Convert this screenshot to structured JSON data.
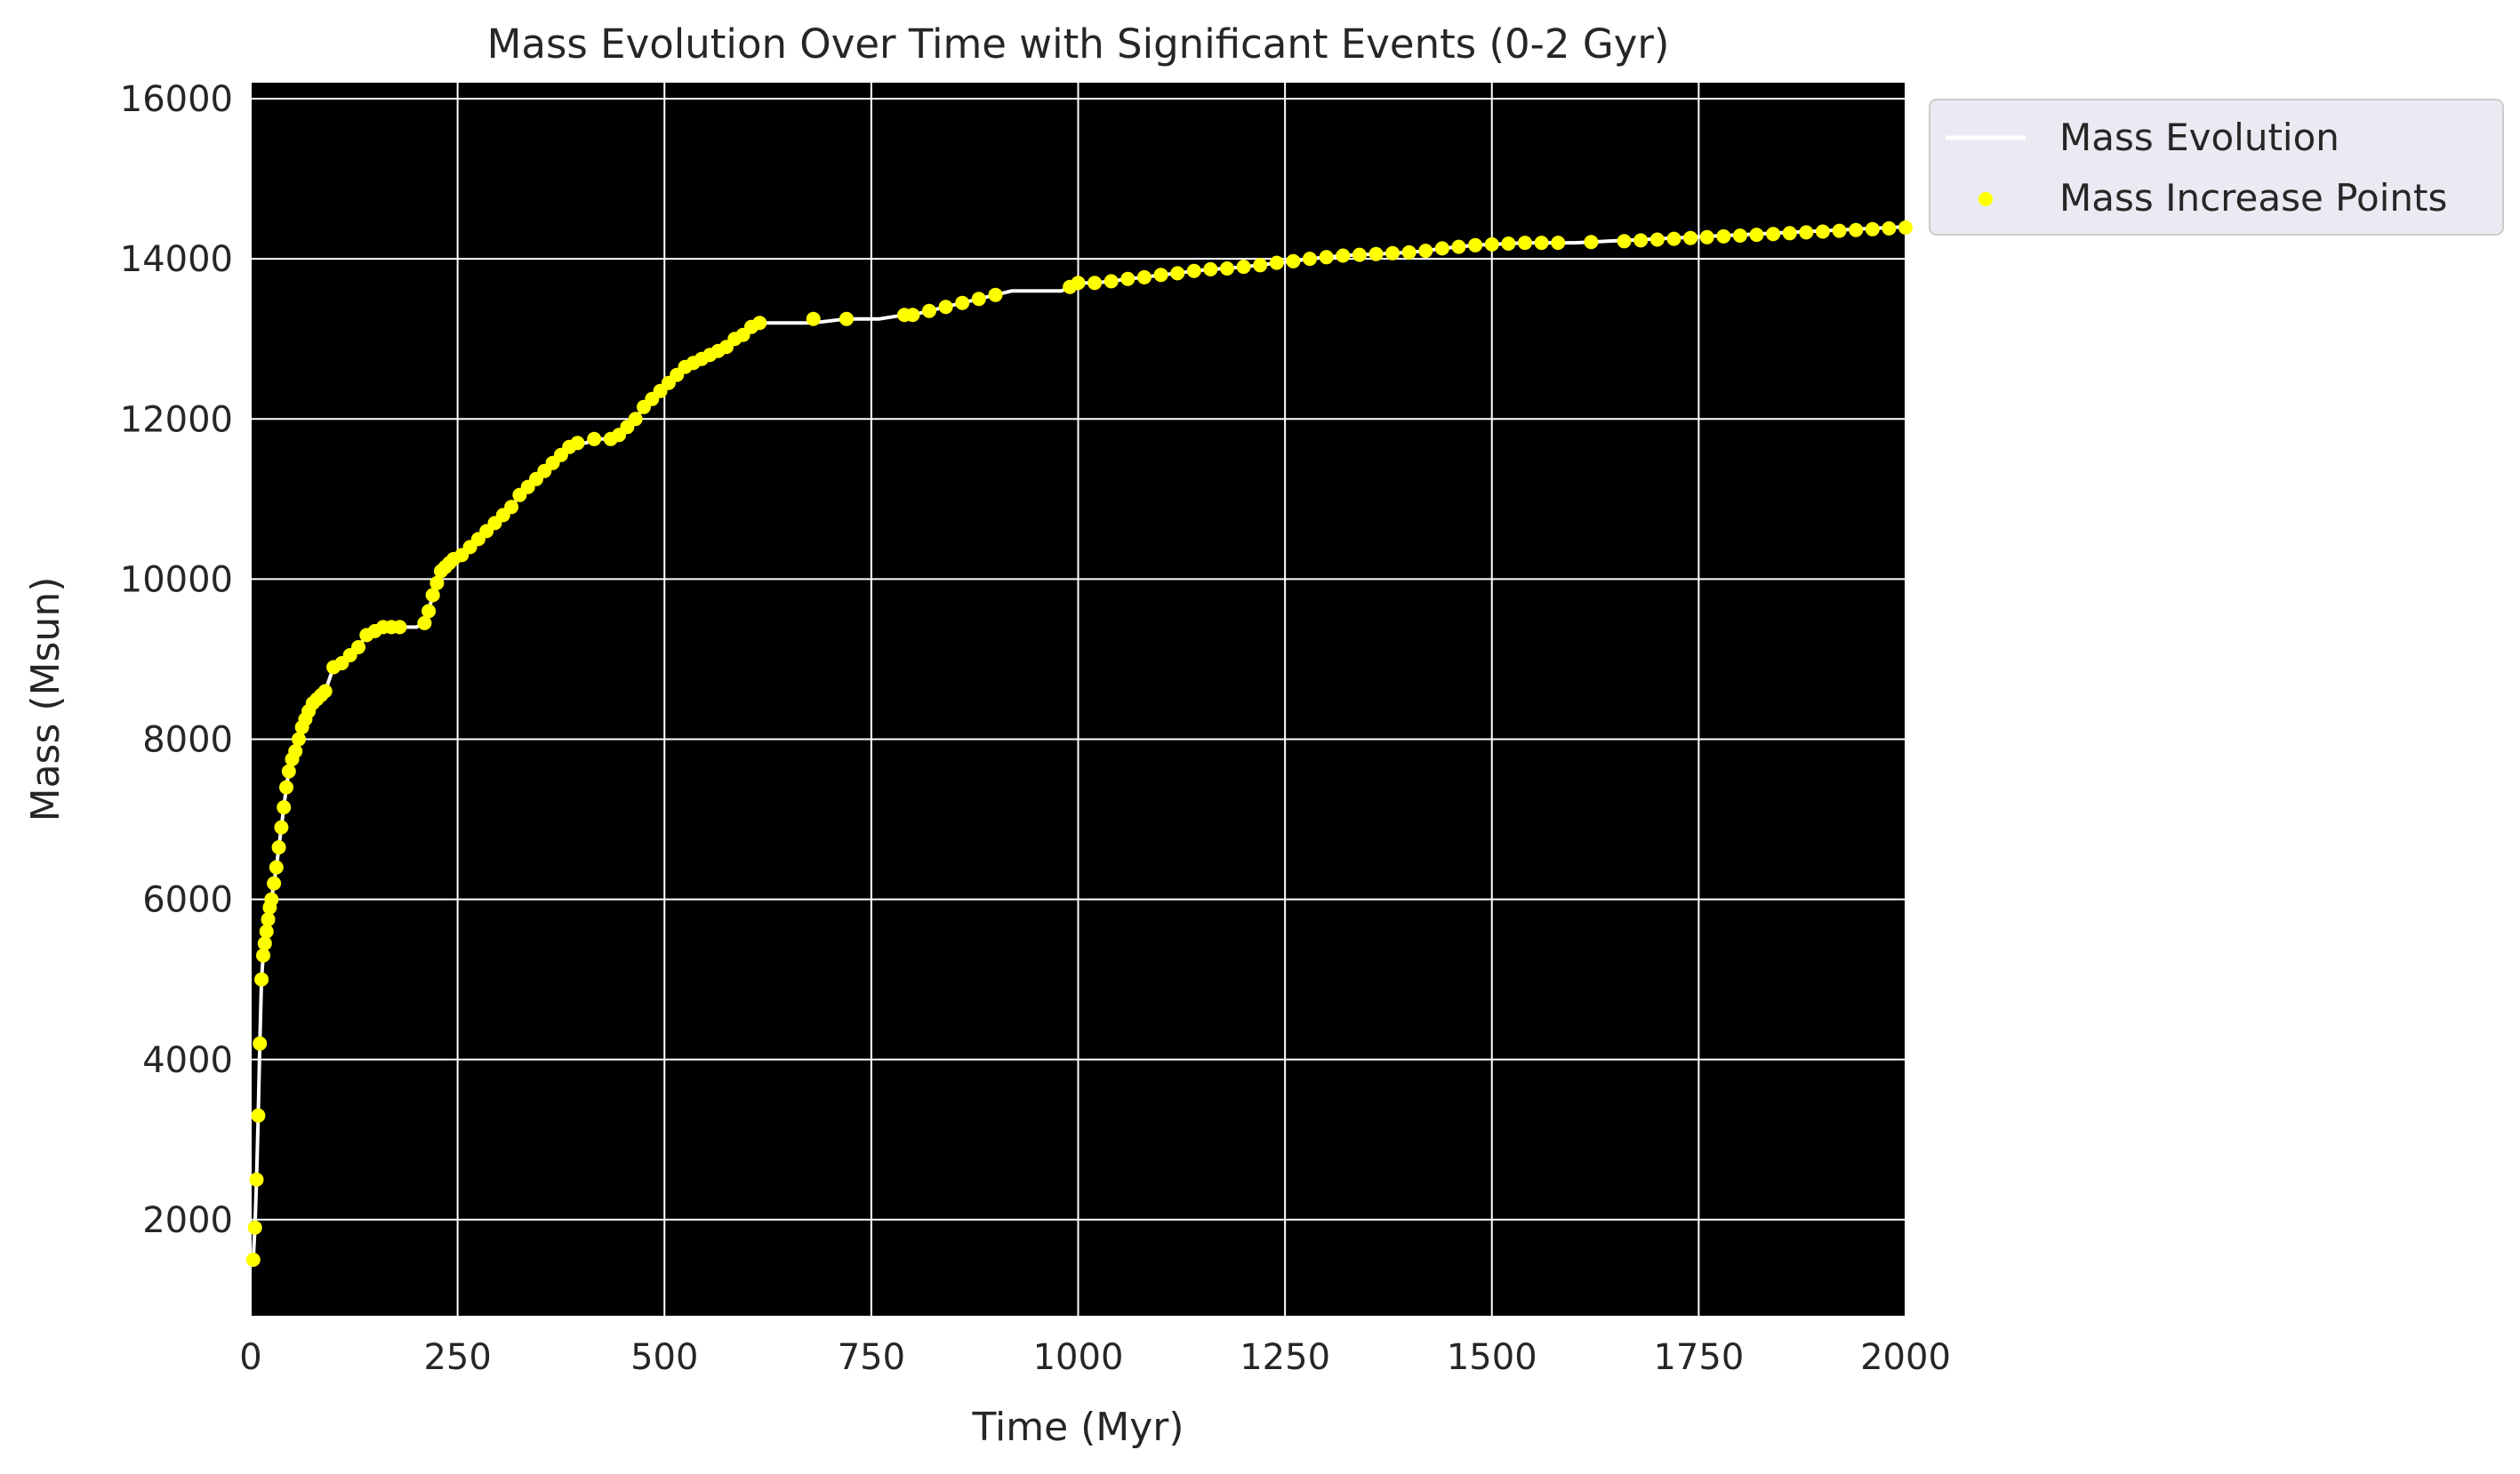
{
  "chart_data": {
    "type": "line",
    "title": "Mass Evolution Over Time with Significant Events (0-2 Gyr)",
    "xlabel": "Time (Myr)",
    "ylabel": "Mass (Msun)",
    "xlim": [
      0,
      2000
    ],
    "ylim": [
      800,
      16200
    ],
    "x_ticks": [
      0,
      250,
      500,
      750,
      1000,
      1250,
      1500,
      1750,
      2000
    ],
    "x_tick_labels": [
      "0",
      "250",
      "500",
      "750",
      "1000",
      "1250",
      "1500",
      "1750",
      "2000"
    ],
    "y_ticks": [
      2000,
      4000,
      6000,
      8000,
      10000,
      12000,
      14000,
      16000
    ],
    "y_tick_labels": [
      "2000",
      "4000",
      "6000",
      "8000",
      "10000",
      "12000",
      "14000",
      "16000"
    ],
    "grid": true,
    "legend_position": "outside upper-right",
    "series": [
      {
        "name": "Mass Evolution",
        "kind": "line",
        "color": "#ffffff",
        "x": [
          3,
          5,
          7,
          9,
          11,
          13,
          15,
          17,
          19,
          21,
          23,
          25,
          28,
          31,
          34,
          37,
          40,
          43,
          46,
          50,
          54,
          58,
          62,
          66,
          70,
          75,
          80,
          85,
          90,
          100,
          110,
          120,
          130,
          140,
          150,
          160,
          170,
          180,
          190,
          200,
          210,
          215,
          220,
          225,
          230,
          235,
          240,
          245,
          255,
          265,
          275,
          285,
          295,
          305,
          315,
          325,
          335,
          345,
          355,
          365,
          375,
          385,
          395,
          405,
          415,
          425,
          435,
          445,
          455,
          465,
          475,
          485,
          495,
          505,
          515,
          525,
          535,
          545,
          555,
          565,
          575,
          585,
          595,
          605,
          615,
          640,
          680,
          720,
          760,
          790,
          800,
          820,
          840,
          860,
          880,
          900,
          920,
          940,
          960,
          980,
          990,
          1000,
          1020,
          1040,
          1060,
          1080,
          1100,
          1120,
          1140,
          1160,
          1180,
          1200,
          1220,
          1240,
          1260,
          1280,
          1300,
          1320,
          1340,
          1360,
          1380,
          1400,
          1420,
          1440,
          1460,
          1480,
          1500,
          1520,
          1540,
          1560,
          1580,
          1600,
          1620,
          1640,
          1660,
          1680,
          1700,
          1720,
          1740,
          1760,
          1780,
          1800,
          1820,
          1840,
          1860,
          1880,
          1900,
          1920,
          1940,
          1960,
          1980,
          2000
        ],
        "y": [
          1500,
          1900,
          2500,
          3300,
          4200,
          5000,
          5300,
          5450,
          5600,
          5750,
          5900,
          6000,
          6200,
          6400,
          6650,
          6900,
          7150,
          7400,
          7600,
          7750,
          7850,
          8000,
          8150,
          8250,
          8350,
          8450,
          8500,
          8550,
          8600,
          8900,
          8950,
          9050,
          9150,
          9300,
          9350,
          9400,
          9400,
          9400,
          9400,
          9400,
          9450,
          9600,
          9800,
          9950,
          10100,
          10150,
          10200,
          10250,
          10300,
          10400,
          10500,
          10600,
          10700,
          10800,
          10900,
          11050,
          11150,
          11250,
          11350,
          11450,
          11550,
          11650,
          11700,
          11700,
          11750,
          11750,
          11750,
          11800,
          11900,
          12000,
          12150,
          12250,
          12350,
          12450,
          12550,
          12650,
          12700,
          12750,
          12800,
          12850,
          12900,
          13000,
          13050,
          13150,
          13200,
          13200,
          13200,
          13250,
          13250,
          13300,
          13300,
          13350,
          13400,
          13450,
          13500,
          13550,
          13600,
          13600,
          13600,
          13600,
          13650,
          13700,
          13700,
          13720,
          13750,
          13770,
          13800,
          13820,
          13850,
          13870,
          13880,
          13900,
          13920,
          13950,
          13970,
          14000,
          14020,
          14040,
          14050,
          14060,
          14070,
          14080,
          14100,
          14130,
          14150,
          14170,
          14180,
          14190,
          14200,
          14200,
          14200,
          14200,
          14210,
          14220,
          14230,
          14240,
          14250,
          14260,
          14270,
          14280,
          14290,
          14300,
          14310,
          14320,
          14330,
          14340,
          14350,
          14360,
          14370,
          14380,
          14390,
          14400
        ]
      },
      {
        "name": "Mass Increase Points",
        "kind": "scatter",
        "color": "#ffff00",
        "x": [
          3,
          5,
          7,
          9,
          11,
          13,
          15,
          17,
          19,
          21,
          23,
          25,
          28,
          31,
          34,
          37,
          40,
          43,
          46,
          50,
          54,
          58,
          62,
          66,
          70,
          75,
          80,
          85,
          90,
          100,
          110,
          120,
          130,
          140,
          150,
          160,
          170,
          180,
          210,
          215,
          220,
          225,
          230,
          235,
          240,
          245,
          255,
          265,
          275,
          285,
          295,
          305,
          315,
          325,
          335,
          345,
          355,
          365,
          375,
          385,
          395,
          415,
          435,
          445,
          455,
          465,
          475,
          485,
          495,
          505,
          515,
          525,
          535,
          545,
          555,
          565,
          575,
          585,
          595,
          605,
          615,
          680,
          720,
          790,
          800,
          820,
          840,
          860,
          880,
          900,
          990,
          1000,
          1020,
          1040,
          1060,
          1080,
          1100,
          1120,
          1140,
          1160,
          1180,
          1200,
          1220,
          1240,
          1260,
          1280,
          1300,
          1320,
          1340,
          1360,
          1380,
          1400,
          1420,
          1440,
          1460,
          1480,
          1500,
          1520,
          1540,
          1560,
          1580,
          1620,
          1660,
          1680,
          1700,
          1720,
          1740,
          1760,
          1780,
          1800,
          1820,
          1840,
          1860,
          1880,
          1900,
          1920,
          1940,
          1960,
          1980,
          2000
        ],
        "y": [
          1500,
          1900,
          2500,
          3300,
          4200,
          5000,
          5300,
          5450,
          5600,
          5750,
          5900,
          6000,
          6200,
          6400,
          6650,
          6900,
          7150,
          7400,
          7600,
          7750,
          7850,
          8000,
          8150,
          8250,
          8350,
          8450,
          8500,
          8550,
          8600,
          8900,
          8950,
          9050,
          9150,
          9300,
          9350,
          9400,
          9400,
          9400,
          9450,
          9600,
          9800,
          9950,
          10100,
          10150,
          10200,
          10250,
          10300,
          10400,
          10500,
          10600,
          10700,
          10800,
          10900,
          11050,
          11150,
          11250,
          11350,
          11450,
          11550,
          11650,
          11700,
          11750,
          11750,
          11800,
          11900,
          12000,
          12150,
          12250,
          12350,
          12450,
          12550,
          12650,
          12700,
          12750,
          12800,
          12850,
          12900,
          13000,
          13050,
          13150,
          13200,
          13250,
          13250,
          13300,
          13300,
          13350,
          13400,
          13450,
          13500,
          13550,
          13650,
          13700,
          13700,
          13720,
          13750,
          13770,
          13800,
          13820,
          13850,
          13870,
          13880,
          13900,
          13920,
          13950,
          13970,
          14000,
          14020,
          14040,
          14050,
          14060,
          14070,
          14080,
          14100,
          14130,
          14150,
          14170,
          14180,
          14190,
          14200,
          14200,
          14200,
          14210,
          14220,
          14230,
          14240,
          14250,
          14260,
          14270,
          14280,
          14290,
          14300,
          14310,
          14320,
          14330,
          14340,
          14350,
          14360,
          14370,
          14380,
          14390
        ]
      }
    ],
    "colors": {
      "plot_background": "#000000",
      "grid": "#ffffff",
      "legend_background": "#eaeaf2"
    }
  }
}
